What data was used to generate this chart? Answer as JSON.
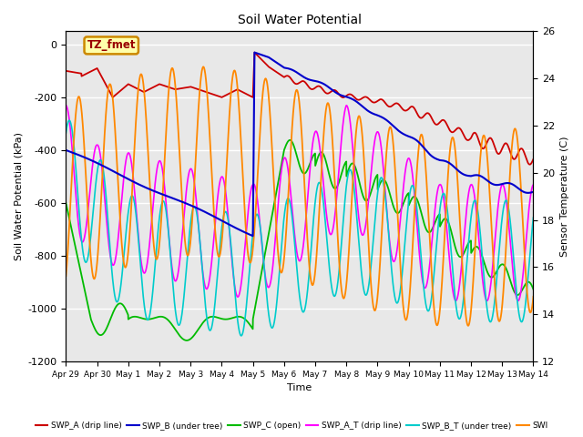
{
  "title": "Soil Water Potential",
  "ylabel_left": "Soil Water Potential (kPa)",
  "ylabel_right": "Sensor Temperature (C)",
  "xlabel": "Time",
  "ylim_left": [
    -1200,
    50
  ],
  "ylim_right": [
    12,
    26
  ],
  "yticks_left": [
    0,
    -200,
    -400,
    -600,
    -800,
    -1000,
    -1200
  ],
  "yticks_right": [
    12,
    14,
    16,
    18,
    20,
    22,
    24,
    26
  ],
  "xtick_labels": [
    "Apr 29",
    "Apr 30",
    "May 1",
    "May 2",
    "May 3",
    "May 4",
    "May 5",
    "May 6",
    "May 7",
    "May 8",
    "May 9",
    "May 10",
    "May 11",
    "May 12",
    "May 13",
    "May 14"
  ],
  "bg_color": "#e8e8e8",
  "annotation_box": "TZ_fmet",
  "colors": {
    "swp_a": "#cc0000",
    "swp_b": "#0000cc",
    "swp_c": "#00bb00",
    "swp_at": "#ff00ff",
    "swp_bt": "#00cccc",
    "temp": "#ff8800"
  }
}
